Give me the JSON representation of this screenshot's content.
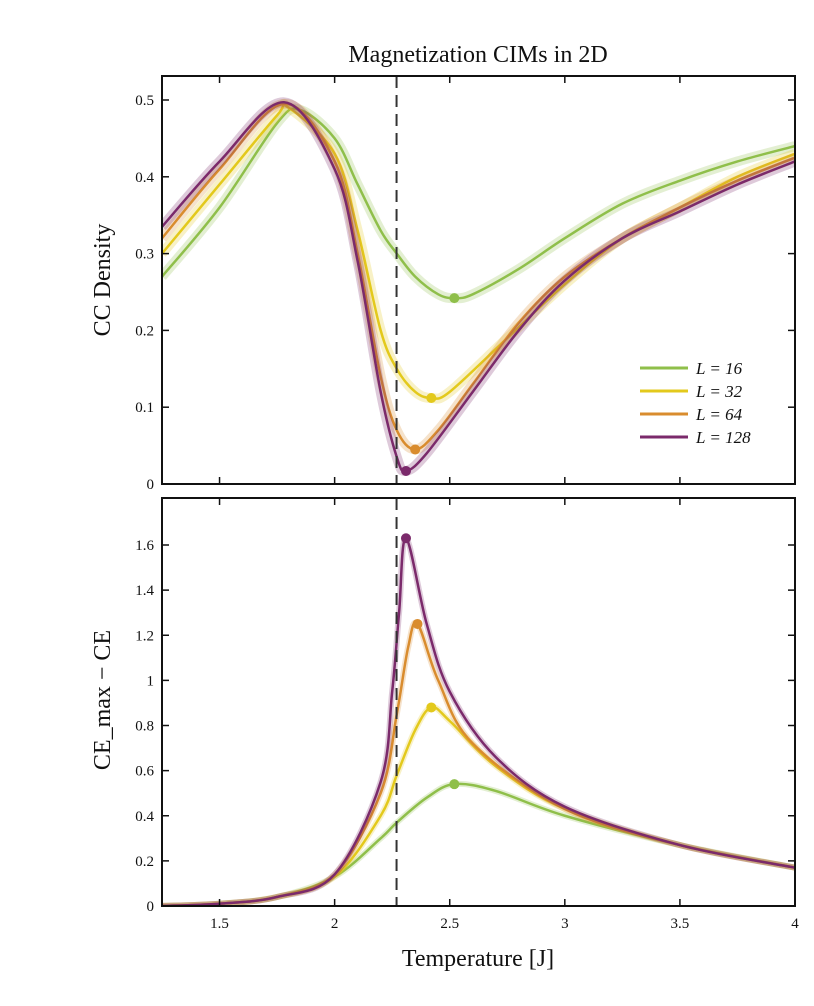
{
  "chart_data": [
    {
      "type": "line",
      "title": "Magnetization CIMs in 2D",
      "xlabel": "",
      "ylabel": "CC Density",
      "xlim": [
        1.25,
        4
      ],
      "ylim": [
        0,
        0.53
      ],
      "yticks": [
        0,
        0.1,
        0.2,
        0.3,
        0.4,
        0.5
      ],
      "ytick_labels": [
        "0",
        "0.1",
        "0.2",
        "0.3",
        "0.4",
        "0.5"
      ],
      "vline": 2.269,
      "legend_position": "center-right",
      "series": [
        {
          "name": "L = 16",
          "color": "#8fbf4a",
          "marker": [
            2.52,
            0.242
          ],
          "x": [
            1.25,
            1.5,
            1.75,
            1.85,
            2.0,
            2.1,
            2.2,
            2.27,
            2.35,
            2.45,
            2.52,
            2.6,
            2.8,
            3.0,
            3.25,
            3.5,
            3.75,
            4.0
          ],
          "y": [
            0.27,
            0.36,
            0.47,
            0.487,
            0.45,
            0.39,
            0.33,
            0.3,
            0.27,
            0.247,
            0.242,
            0.247,
            0.28,
            0.32,
            0.365,
            0.395,
            0.42,
            0.44
          ]
        },
        {
          "name": "L = 32",
          "color": "#e3c91c",
          "marker": [
            2.42,
            0.112
          ],
          "x": [
            1.25,
            1.5,
            1.75,
            1.8,
            2.0,
            2.1,
            2.2,
            2.27,
            2.35,
            2.42,
            2.5,
            2.75,
            3.0,
            3.25,
            3.5,
            3.75,
            4.0
          ],
          "y": [
            0.3,
            0.39,
            0.48,
            0.49,
            0.43,
            0.33,
            0.2,
            0.15,
            0.12,
            0.112,
            0.12,
            0.19,
            0.26,
            0.32,
            0.36,
            0.4,
            0.43
          ]
        },
        {
          "name": "L = 64",
          "color": "#d98c2e",
          "marker": [
            2.35,
            0.045
          ],
          "x": [
            1.25,
            1.5,
            1.78,
            2.0,
            2.1,
            2.2,
            2.27,
            2.35,
            2.45,
            2.6,
            2.8,
            3.0,
            3.25,
            3.5,
            3.75,
            4.0
          ],
          "y": [
            0.32,
            0.41,
            0.495,
            0.42,
            0.3,
            0.14,
            0.07,
            0.045,
            0.07,
            0.13,
            0.21,
            0.27,
            0.32,
            0.36,
            0.395,
            0.425
          ]
        },
        {
          "name": "L = 128",
          "color": "#7b2a6b",
          "marker": [
            2.31,
            0.017
          ],
          "x": [
            1.25,
            1.5,
            1.78,
            2.0,
            2.1,
            2.2,
            2.27,
            2.31,
            2.4,
            2.6,
            2.8,
            3.0,
            3.25,
            3.5,
            3.75,
            4.0
          ],
          "y": [
            0.335,
            0.42,
            0.497,
            0.41,
            0.29,
            0.12,
            0.035,
            0.017,
            0.04,
            0.12,
            0.2,
            0.265,
            0.32,
            0.355,
            0.39,
            0.42
          ]
        }
      ]
    },
    {
      "type": "line",
      "xlabel": "Temperature [J]",
      "ylabel": "CE_max − CE",
      "xlim": [
        1.25,
        4
      ],
      "ylim": [
        0,
        1.8
      ],
      "xticks": [
        1.5,
        2,
        2.5,
        3,
        3.5,
        4
      ],
      "xtick_labels": [
        "1.5",
        "2",
        "2.5",
        "3",
        "3.5",
        "4"
      ],
      "yticks": [
        0,
        0.2,
        0.4,
        0.6,
        0.8,
        1,
        1.2,
        1.4,
        1.6
      ],
      "ytick_labels": [
        "0",
        "0.2",
        "0.4",
        "0.6",
        "0.8",
        "1",
        "1.2",
        "1.4",
        "1.6"
      ],
      "vline": 2.269,
      "series": [
        {
          "name": "L = 16",
          "color": "#8fbf4a",
          "marker": [
            2.52,
            0.54
          ],
          "x": [
            1.25,
            1.5,
            1.75,
            2.0,
            2.2,
            2.27,
            2.4,
            2.52,
            2.7,
            3.0,
            3.5,
            4.0
          ],
          "y": [
            0.0,
            0.01,
            0.04,
            0.13,
            0.3,
            0.37,
            0.48,
            0.54,
            0.51,
            0.4,
            0.27,
            0.17
          ]
        },
        {
          "name": "L = 32",
          "color": "#e3c91c",
          "marker": [
            2.42,
            0.88
          ],
          "x": [
            1.25,
            1.5,
            1.75,
            2.0,
            2.2,
            2.27,
            2.35,
            2.42,
            2.5,
            2.7,
            3.0,
            3.5,
            4.0
          ],
          "y": [
            0.0,
            0.01,
            0.04,
            0.13,
            0.4,
            0.58,
            0.78,
            0.88,
            0.82,
            0.62,
            0.43,
            0.27,
            0.17
          ]
        },
        {
          "name": "L = 64",
          "color": "#d98c2e",
          "marker": [
            2.36,
            1.25
          ],
          "x": [
            1.25,
            1.5,
            1.75,
            2.0,
            2.2,
            2.27,
            2.32,
            2.36,
            2.45,
            2.6,
            3.0,
            3.5,
            4.0
          ],
          "y": [
            0.0,
            0.01,
            0.04,
            0.14,
            0.5,
            0.85,
            1.15,
            1.25,
            1.0,
            0.72,
            0.43,
            0.27,
            0.17
          ]
        },
        {
          "name": "L = 128",
          "color": "#7b2a6b",
          "marker": [
            2.31,
            1.63
          ],
          "x": [
            1.25,
            1.5,
            1.75,
            2.0,
            2.2,
            2.25,
            2.28,
            2.31,
            2.4,
            2.5,
            2.7,
            3.0,
            3.5,
            4.0
          ],
          "y": [
            0.0,
            0.01,
            0.04,
            0.14,
            0.55,
            0.95,
            1.3,
            1.63,
            1.25,
            0.95,
            0.66,
            0.44,
            0.27,
            0.17
          ]
        }
      ]
    }
  ]
}
